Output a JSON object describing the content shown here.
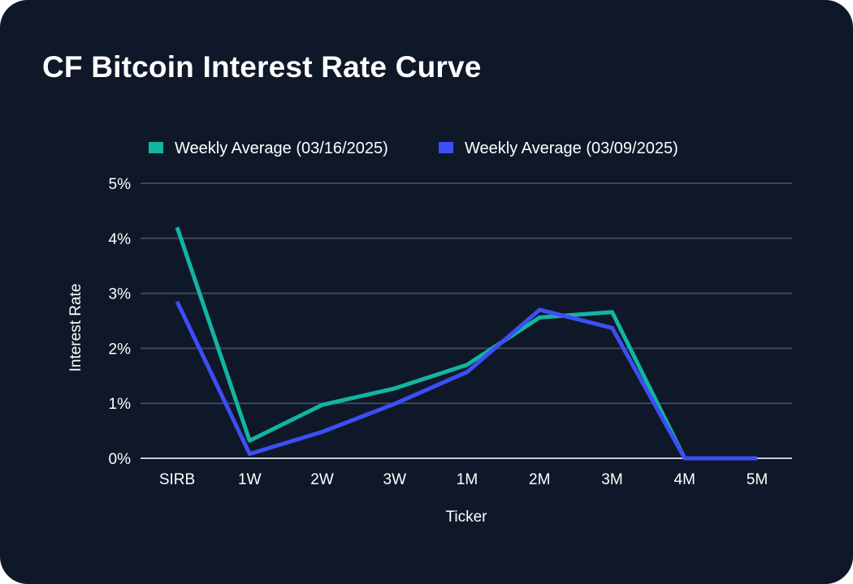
{
  "chart_data": {
    "type": "line",
    "title": "CF Bitcoin Interest Rate Curve",
    "xlabel": "Ticker",
    "ylabel": "Interest Rate",
    "categories": [
      "SIRB",
      "1W",
      "2W",
      "3W",
      "1M",
      "2M",
      "3M",
      "4M",
      "5M"
    ],
    "ylim": [
      0,
      5
    ],
    "yticks": [
      0,
      1,
      2,
      3,
      4,
      5
    ],
    "ytick_labels": [
      "0%",
      "1%",
      "2%",
      "3%",
      "4%",
      "5%"
    ],
    "grid": true,
    "legend_position": "top",
    "series": [
      {
        "name": "Weekly Average (03/16/2025)",
        "color": "#12b5a0",
        "values": [
          4.2,
          0.32,
          0.97,
          1.27,
          1.7,
          2.56,
          2.66,
          0.0,
          0.0
        ]
      },
      {
        "name": "Weekly Average (03/09/2025)",
        "color": "#3d4ef5",
        "values": [
          2.85,
          0.08,
          0.48,
          0.99,
          1.57,
          2.7,
          2.37,
          0.0,
          0.0
        ]
      }
    ]
  },
  "colors": {
    "background": "#0f1829",
    "gridline": "#3f4757",
    "axis_line": "#c9ccd2",
    "text": "#ffffff"
  }
}
